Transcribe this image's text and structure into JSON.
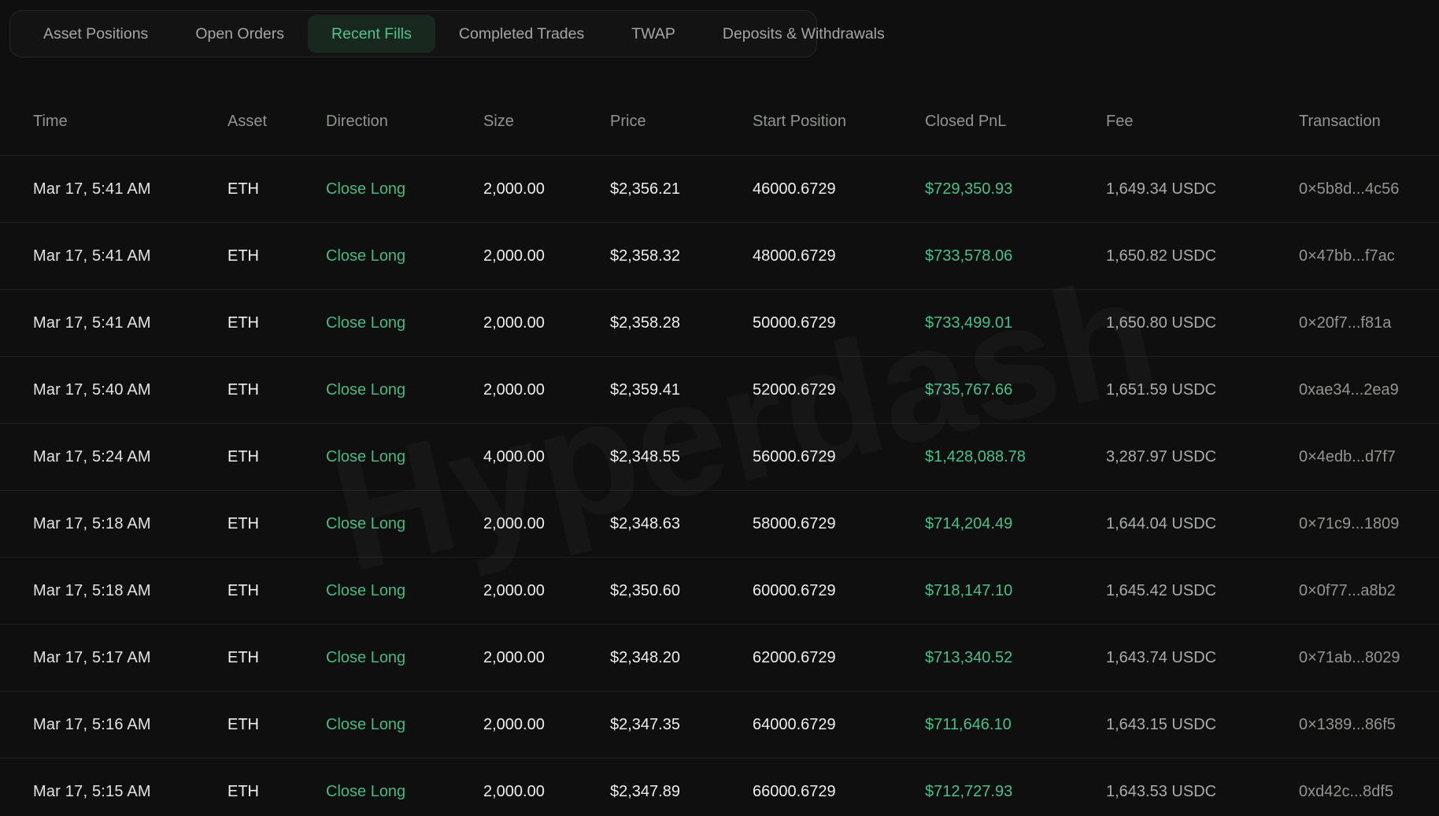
{
  "tabs": [
    {
      "label": "Asset Positions",
      "key": "asset-positions",
      "active": false
    },
    {
      "label": "Open Orders",
      "key": "open-orders",
      "active": false
    },
    {
      "label": "Recent Fills",
      "key": "recent-fills",
      "active": true
    },
    {
      "label": "Completed Trades",
      "key": "completed-trades",
      "active": false
    },
    {
      "label": "TWAP",
      "key": "twap",
      "active": false
    },
    {
      "label": "Deposits & Withdrawals",
      "key": "deposits-withdrawals",
      "active": false
    }
  ],
  "table": {
    "columns": [
      {
        "key": "time",
        "label": "Time"
      },
      {
        "key": "asset",
        "label": "Asset"
      },
      {
        "key": "direction",
        "label": "Direction"
      },
      {
        "key": "size",
        "label": "Size"
      },
      {
        "key": "price",
        "label": "Price"
      },
      {
        "key": "start_position",
        "label": "Start Position"
      },
      {
        "key": "closed_pnl",
        "label": "Closed PnL"
      },
      {
        "key": "fee",
        "label": "Fee"
      },
      {
        "key": "transaction",
        "label": "Transaction"
      }
    ],
    "rows": [
      {
        "time": "Mar 17, 5:41 AM",
        "asset": "ETH",
        "direction": "Close Long",
        "size": "2,000.00",
        "price": "$2,356.21",
        "start_position": "46000.6729",
        "closed_pnl": "$729,350.93",
        "fee": "1,649.34 USDC",
        "transaction": "0×5b8d...4c56"
      },
      {
        "time": "Mar 17, 5:41 AM",
        "asset": "ETH",
        "direction": "Close Long",
        "size": "2,000.00",
        "price": "$2,358.32",
        "start_position": "48000.6729",
        "closed_pnl": "$733,578.06",
        "fee": "1,650.82 USDC",
        "transaction": "0×47bb...f7ac"
      },
      {
        "time": "Mar 17, 5:41 AM",
        "asset": "ETH",
        "direction": "Close Long",
        "size": "2,000.00",
        "price": "$2,358.28",
        "start_position": "50000.6729",
        "closed_pnl": "$733,499.01",
        "fee": "1,650.80 USDC",
        "transaction": "0×20f7...f81a"
      },
      {
        "time": "Mar 17, 5:40 AM",
        "asset": "ETH",
        "direction": "Close Long",
        "size": "2,000.00",
        "price": "$2,359.41",
        "start_position": "52000.6729",
        "closed_pnl": "$735,767.66",
        "fee": "1,651.59 USDC",
        "transaction": "0xae34...2ea9"
      },
      {
        "time": "Mar 17, 5:24 AM",
        "asset": "ETH",
        "direction": "Close Long",
        "size": "4,000.00",
        "price": "$2,348.55",
        "start_position": "56000.6729",
        "closed_pnl": "$1,428,088.78",
        "fee": "3,287.97 USDC",
        "transaction": "0×4edb...d7f7"
      },
      {
        "time": "Mar 17, 5:18 AM",
        "asset": "ETH",
        "direction": "Close Long",
        "size": "2,000.00",
        "price": "$2,348.63",
        "start_position": "58000.6729",
        "closed_pnl": "$714,204.49",
        "fee": "1,644.04 USDC",
        "transaction": "0×71c9...1809"
      },
      {
        "time": "Mar 17, 5:18 AM",
        "asset": "ETH",
        "direction": "Close Long",
        "size": "2,000.00",
        "price": "$2,350.60",
        "start_position": "60000.6729",
        "closed_pnl": "$718,147.10",
        "fee": "1,645.42 USDC",
        "transaction": "0×0f77...a8b2"
      },
      {
        "time": "Mar 17, 5:17 AM",
        "asset": "ETH",
        "direction": "Close Long",
        "size": "2,000.00",
        "price": "$2,348.20",
        "start_position": "62000.6729",
        "closed_pnl": "$713,340.52",
        "fee": "1,643.74 USDC",
        "transaction": "0×71ab...8029"
      },
      {
        "time": "Mar 17, 5:16 AM",
        "asset": "ETH",
        "direction": "Close Long",
        "size": "2,000.00",
        "price": "$2,347.35",
        "start_position": "64000.6729",
        "closed_pnl": "$711,646.10",
        "fee": "1,643.15 USDC",
        "transaction": "0×1389...86f5"
      },
      {
        "time": "Mar 17, 5:15 AM",
        "asset": "ETH",
        "direction": "Close Long",
        "size": "2,000.00",
        "price": "$2,347.89",
        "start_position": "66000.6729",
        "closed_pnl": "$712,727.93",
        "fee": "1,643.53 USDC",
        "transaction": "0xd42c...8df5"
      }
    ]
  },
  "watermark": "Hyperdash",
  "colors": {
    "background": "#0e0f0e",
    "accent_green": "#4cbf8a",
    "active_tab_bg": "#18281f",
    "active_tab_text": "#54c28c",
    "muted_text": "#a2a7a4",
    "header_text": "#90958f",
    "row_separator": "#1d1f1d"
  }
}
